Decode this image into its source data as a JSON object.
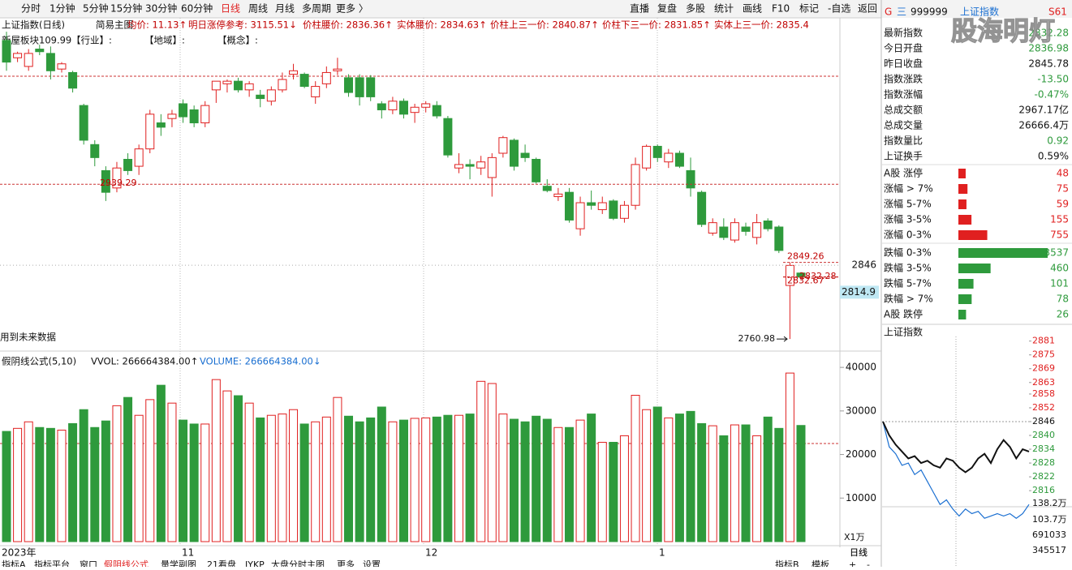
{
  "toolbar": {
    "left": [
      "分时",
      "1分钟",
      "5分钟",
      "15分钟",
      "30分钟",
      "60分钟",
      "日线",
      "周线",
      "月线",
      "多周期",
      "更多 〉"
    ],
    "right": [
      "直播",
      "复盘",
      "多股",
      "统计",
      "画线",
      "F10",
      "标记",
      "-自选",
      "返回"
    ]
  },
  "info": {
    "title": "上证指数(日线)",
    "template": "简易主图",
    "items": [
      "均价: 11.13↑",
      "明日涨停参考: 3115.51↓",
      "价柱腰价: 2836.36↑",
      "实体腰价: 2834.63↑",
      "价柱上三一价: 2840.87↑",
      "价柱下三一价: 2831.85↑",
      "实体上三一价: 2835.4"
    ],
    "sector": "新屋板块109.99",
    "tags": [
      "【行业】:",
      "【地域】:",
      "【概念】:"
    ],
    "warning": "用到未来数据"
  },
  "kline": {
    "ylim": [
      2748,
      3131
    ],
    "candles": [
      [
        3105,
        3115,
        3070,
        3080
      ],
      [
        3085,
        3092,
        3080,
        3090
      ],
      [
        3075,
        3095,
        3070,
        3090
      ],
      [
        3095,
        3100,
        3088,
        3092
      ],
      [
        3090,
        3098,
        3060,
        3070
      ],
      [
        3072,
        3080,
        3068,
        3078
      ],
      [
        3068,
        3070,
        3045,
        3050
      ],
      [
        3030,
        3032,
        2985,
        2990
      ],
      [
        2985,
        2990,
        2960,
        2970
      ],
      [
        2955,
        2960,
        2920,
        2930
      ],
      [
        2935,
        2965,
        2930,
        2958
      ],
      [
        2968,
        2975,
        2950,
        2955
      ],
      [
        2960,
        2985,
        2950,
        2980
      ],
      [
        2980,
        3025,
        2975,
        3020
      ],
      [
        3010,
        3020,
        2995,
        3005
      ],
      [
        3015,
        3025,
        3005,
        3020
      ],
      [
        3032,
        3037,
        3010,
        3017
      ],
      [
        3025,
        3030,
        3005,
        3010
      ],
      [
        3010,
        3035,
        3005,
        3030
      ],
      [
        3048,
        3058,
        3033,
        3058
      ],
      [
        3055,
        3060,
        3045,
        3058
      ],
      [
        3058,
        3062,
        3045,
        3048
      ],
      [
        3048,
        3058,
        3040,
        3055
      ],
      [
        3042,
        3048,
        3028,
        3038
      ],
      [
        3035,
        3052,
        3030,
        3048
      ],
      [
        3048,
        3068,
        3045,
        3060
      ],
      [
        3066,
        3078,
        3060,
        3070
      ],
      [
        3066,
        3068,
        3050,
        3052
      ],
      [
        3040,
        3058,
        3032,
        3052
      ],
      [
        3055,
        3075,
        3050,
        3068
      ],
      [
        3070,
        3085,
        3065,
        3072
      ],
      [
        3062,
        3066,
        3040,
        3045
      ],
      [
        3062,
        3066,
        3030,
        3040
      ],
      [
        3062,
        3065,
        3035,
        3040
      ],
      [
        3032,
        3035,
        3015,
        3025
      ],
      [
        3025,
        3040,
        3020,
        3035
      ],
      [
        3035,
        3038,
        3015,
        3020
      ],
      [
        3022,
        3032,
        3010,
        3028
      ],
      [
        3028,
        3035,
        3022,
        3032
      ],
      [
        3030,
        3035,
        3015,
        3018
      ],
      [
        3015,
        3018,
        2970,
        2973
      ],
      [
        2958,
        2975,
        2952,
        2962
      ],
      [
        2962,
        2968,
        2945,
        2960
      ],
      [
        2958,
        2972,
        2950,
        2965
      ],
      [
        2947,
        2975,
        2925,
        2970
      ],
      [
        2975,
        2995,
        2970,
        2993
      ],
      [
        2990,
        2992,
        2955,
        2960
      ],
      [
        2975,
        2985,
        2965,
        2970
      ],
      [
        2968,
        2970,
        2940,
        2942
      ],
      [
        2937,
        2945,
        2930,
        2932
      ],
      [
        2925,
        2935,
        2920,
        2928
      ],
      [
        2930,
        2935,
        2895,
        2898
      ],
      [
        2888,
        2925,
        2880,
        2918
      ],
      [
        2918,
        2932,
        2910,
        2915
      ],
      [
        2910,
        2925,
        2905,
        2918
      ],
      [
        2920,
        2922,
        2898,
        2900
      ],
      [
        2900,
        2920,
        2895,
        2915
      ],
      [
        2915,
        2970,
        2910,
        2962
      ],
      [
        2958,
        2985,
        2955,
        2983
      ],
      [
        2983,
        2985,
        2965,
        2970
      ],
      [
        2965,
        2980,
        2958,
        2975
      ],
      [
        2975,
        2978,
        2958,
        2960
      ],
      [
        2955,
        2970,
        2925,
        2935
      ],
      [
        2930,
        2932,
        2890,
        2893
      ],
      [
        2883,
        2900,
        2880,
        2895
      ],
      [
        2890,
        2900,
        2875,
        2878
      ],
      [
        2875,
        2900,
        2872,
        2895
      ],
      [
        2890,
        2895,
        2880,
        2885
      ],
      [
        2878,
        2905,
        2870,
        2895
      ],
      [
        2897,
        2900,
        2885,
        2888
      ],
      [
        2890,
        2892,
        2860,
        2863
      ],
      [
        2822.67,
        2849.26,
        2760.98,
        2845.78
      ],
      [
        2836.98,
        2838,
        2830,
        2832.28
      ]
    ],
    "annotations": [
      2939.29,
      2849.26,
      2832.28,
      2832.67,
      2760.98
    ],
    "price_tags": [
      2846,
      2814.9
    ],
    "months": [
      "2023年",
      "11",
      "12",
      "1"
    ],
    "vol_header": [
      "假阴线公式(5,10)",
      "VVOL: 266664384.00↑",
      "VOLUME: 266664384.00↓"
    ],
    "vol_ylim": [
      0,
      43000
    ],
    "vol_ticks": [
      10000,
      20000,
      30000,
      40000
    ],
    "vol_unit": "X1万",
    "volumes": [
      25300,
      26000,
      27500,
      26200,
      26000,
      25600,
      27100,
      30300,
      26200,
      27700,
      31200,
      33100,
      29000,
      32600,
      35900,
      31800,
      27900,
      27000,
      27000,
      37200,
      34600,
      33500,
      31800,
      28400,
      29000,
      29300,
      30300,
      27000,
      27500,
      28600,
      33100,
      28800,
      27500,
      28400,
      30900,
      27500,
      27900,
      28300,
      28400,
      28600,
      29000,
      29000,
      29300,
      36800,
      36300,
      29300,
      28100,
      27500,
      28800,
      28100,
      26200,
      26200,
      27900,
      29300,
      22800,
      22800,
      24300,
      33600,
      30300,
      30900,
      28400,
      29300,
      29900,
      27100,
      26600,
      24300,
      26800,
      26800,
      24300,
      28600,
      26000,
      38700,
      26666.4
    ]
  },
  "bottom_tabs": {
    "left": [
      "指标A",
      "指标平台",
      "窗口",
      "假阴线公式",
      "量学副图",
      "21看盘",
      "JYKP",
      "大盘分时主图",
      "更多",
      "设置"
    ],
    "right": [
      "指标B",
      "模板",
      "日线",
      "+",
      "-"
    ]
  },
  "panel": {
    "header": [
      "G",
      "三",
      "999999",
      "上证指数",
      "S61"
    ],
    "watermark": "股海明灯",
    "stats": [
      [
        "最新指数",
        "2832.28"
      ],
      [
        "今日开盘",
        "2836.98"
      ],
      [
        "昨日收盘",
        "2845.78"
      ],
      [
        "指数涨跌",
        "-13.50"
      ],
      [
        "指数涨幅",
        "-0.47%"
      ],
      [
        "总成交额",
        "2967.17亿"
      ],
      [
        "总成交量",
        "26666.4万"
      ],
      [
        "指数量比",
        "0.92"
      ],
      [
        "上证换手",
        "0.59%"
      ]
    ],
    "up": [
      [
        "A股 涨停",
        48
      ],
      [
        "涨幅 > 7%",
        75
      ],
      [
        "涨幅 5-7%",
        59
      ],
      [
        "涨幅 3-5%",
        155
      ],
      [
        "涨幅 0-3%",
        755
      ]
    ],
    "down": [
      [
        "跌幅 0-3%",
        3537
      ],
      [
        "跌幅 3-5%",
        460
      ],
      [
        "跌幅 5-7%",
        101
      ],
      [
        "跌幅 > 7%",
        78
      ],
      [
        "A股 跌停",
        26
      ]
    ]
  },
  "minute": {
    "title": "上证指数",
    "ylim": [
      2809,
      2883
    ],
    "yticks": [
      2881,
      2875,
      2869,
      2863,
      2858,
      2852,
      2846,
      2840,
      2834,
      2828,
      2822,
      2816
    ],
    "index": [
      2846,
      2840,
      2836,
      2833,
      2830,
      2831,
      2828,
      2829,
      2827,
      2826,
      2830,
      2829,
      2826,
      2824,
      2826,
      2830,
      2832,
      2828,
      2834,
      2838,
      2835,
      2830,
      2834,
      2833
    ],
    "lead": [
      2846,
      2835,
      2832,
      2827,
      2828,
      2823,
      2825,
      2820,
      2815,
      2810,
      2812,
      2808,
      2805,
      2808,
      2806,
      2807,
      2804,
      2805,
      2806,
      2805,
      2806,
      2804,
      2806,
      2810
    ],
    "vol_labels": [
      "138.2万",
      "103.7万",
      "691033",
      "345517"
    ],
    "mode": "日线"
  }
}
